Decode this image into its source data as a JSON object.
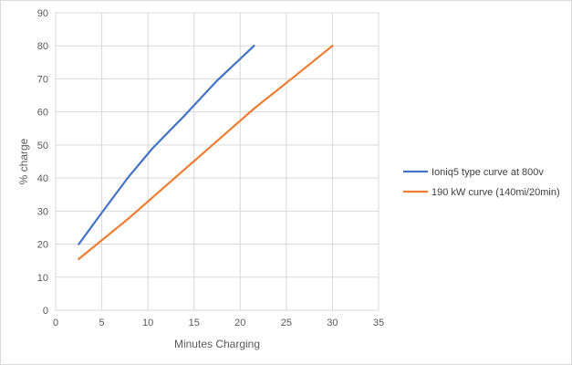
{
  "chart_data": {
    "type": "line",
    "title": "",
    "xlabel": "Minutes Charging",
    "ylabel": "% charge",
    "xlim": [
      0,
      35
    ],
    "ylim": [
      0,
      90
    ],
    "xticks": [
      0,
      5,
      10,
      15,
      20,
      25,
      30,
      35
    ],
    "yticks": [
      0,
      10,
      20,
      30,
      40,
      50,
      60,
      70,
      80,
      90
    ],
    "grid": true,
    "legend_position": "right",
    "series": [
      {
        "name": "Ioniq5 type curve at 800v",
        "color": "#4472c4",
        "points": [
          [
            2.5,
            20
          ],
          [
            5,
            29.5
          ],
          [
            7.8,
            40
          ],
          [
            10.5,
            49
          ],
          [
            14,
            59
          ],
          [
            17.5,
            69.5
          ],
          [
            21.5,
            80
          ]
        ]
      },
      {
        "name": "190 kW curve (140mi/20min)",
        "color": "#ed7d31",
        "points": [
          [
            2.5,
            15.5
          ],
          [
            8,
            28
          ],
          [
            12.5,
            39
          ],
          [
            17,
            50
          ],
          [
            21.5,
            61
          ],
          [
            26,
            71
          ],
          [
            30,
            80
          ]
        ]
      }
    ]
  }
}
